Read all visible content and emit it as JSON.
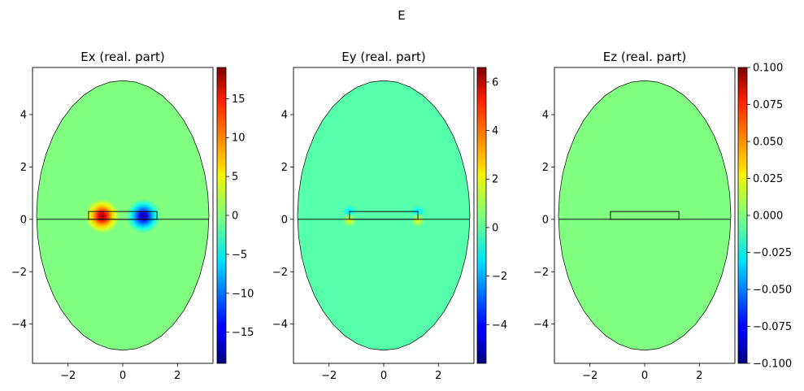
{
  "figure": {
    "title": "E"
  },
  "chart_data": [
    {
      "type": "heatmap",
      "title": "Ex (real. part)",
      "xlim": [
        -3.3,
        3.3
      ],
      "ylim": [
        -5.5,
        5.8
      ],
      "xticks": [
        -2,
        0,
        2
      ],
      "yticks": [
        4,
        2,
        0,
        -2,
        -4
      ],
      "colorbar": {
        "min": -19,
        "max": 19,
        "ticks": [
          15,
          10,
          5,
          0,
          -5,
          -10,
          -15
        ],
        "colormap": "jet"
      },
      "domain": {
        "shape": "ellipse",
        "center": [
          0,
          0.15
        ],
        "semi_axes": [
          3.15,
          5.15
        ],
        "flat_sides_y": [
          -2.4,
          2.7
        ]
      },
      "waveguide": {
        "x": [
          -1.25,
          1.25
        ],
        "y": [
          0,
          0.3
        ]
      },
      "interface_y": 0,
      "field_peaks": [
        {
          "x": -0.75,
          "y": 0.12,
          "value": 19
        },
        {
          "x": 0.75,
          "y": 0.12,
          "value": -19
        }
      ],
      "background_value": 0
    },
    {
      "type": "heatmap",
      "title": "Ey (real. part)",
      "xlim": [
        -3.3,
        3.3
      ],
      "ylim": [
        -5.5,
        5.8
      ],
      "xticks": [
        -2,
        0,
        2
      ],
      "yticks": [
        4,
        2,
        0,
        -2,
        -4
      ],
      "colorbar": {
        "min": -5.6,
        "max": 6.6,
        "ticks": [
          6,
          4,
          2,
          0,
          -2,
          -4
        ],
        "colormap": "jet"
      },
      "domain": {
        "shape": "ellipse",
        "center": [
          0,
          0.15
        ],
        "semi_axes": [
          3.15,
          5.15
        ],
        "flat_sides_y": [
          -2.4,
          2.7
        ]
      },
      "waveguide": {
        "x": [
          -1.25,
          1.25
        ],
        "y": [
          0,
          0.3
        ]
      },
      "interface_y": 0,
      "field_peaks": [
        {
          "x": -1.25,
          "y": 0.3,
          "value": -1.5
        },
        {
          "x": 1.25,
          "y": 0.3,
          "value": -1.5
        },
        {
          "x": -1.25,
          "y": -0.05,
          "value": 1.8
        },
        {
          "x": 1.25,
          "y": -0.05,
          "value": 1.8
        }
      ],
      "background_value": 0
    },
    {
      "type": "heatmap",
      "title": "Ez (real. part)",
      "xlim": [
        -3.3,
        3.3
      ],
      "ylim": [
        -5.5,
        5.8
      ],
      "xticks": [
        -2,
        0,
        2
      ],
      "yticks": [
        4,
        2,
        0,
        -2,
        -4
      ],
      "colorbar": {
        "min": -0.1,
        "max": 0.1,
        "ticks": [
          0.1,
          0.075,
          0.05,
          0.025,
          0.0,
          -0.025,
          -0.05,
          -0.075,
          -0.1
        ],
        "tick_labels": [
          "0.100",
          "0.075",
          "0.050",
          "0.025",
          "0.000",
          "−0.025",
          "−0.050",
          "−0.075",
          "−0.100"
        ],
        "colormap": "jet"
      },
      "domain": {
        "shape": "ellipse",
        "center": [
          0,
          0.15
        ],
        "semi_axes": [
          3.15,
          5.15
        ],
        "flat_sides_y": [
          -2.4,
          2.7
        ]
      },
      "waveguide": {
        "x": [
          -1.25,
          1.25
        ],
        "y": [
          0,
          0.3
        ]
      },
      "interface_y": 0,
      "field_peaks": [],
      "background_value": 0
    }
  ]
}
